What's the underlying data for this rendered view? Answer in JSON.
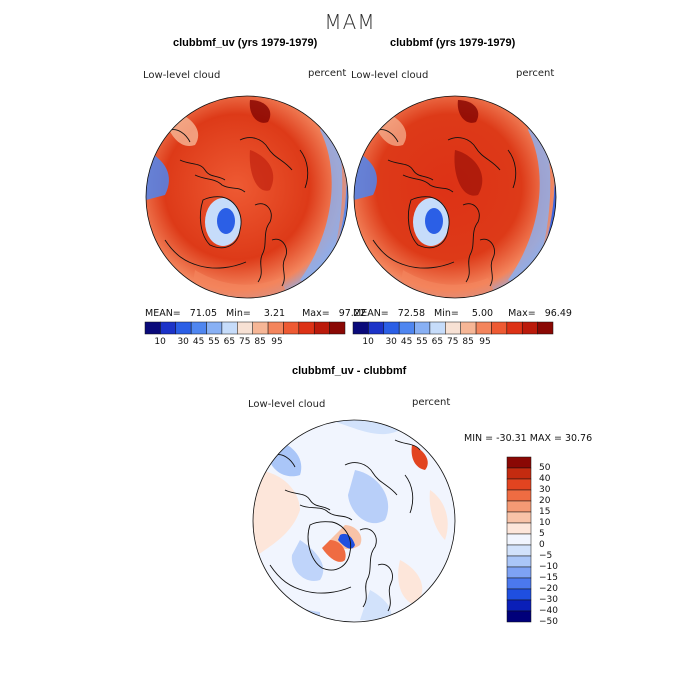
{
  "title": "MAM",
  "colors": {
    "land": "#111111",
    "seq_scale": [
      "#0a0a7a",
      "#1c33c8",
      "#2b5fe6",
      "#4f86f0",
      "#88b0f4",
      "#c6dcfa",
      "#f7e1d4",
      "#f6b696",
      "#f3855d",
      "#ee5a33",
      "#dd3216",
      "#bb1a0b",
      "#8a0804"
    ],
    "div_scale": [
      "#00007a",
      "#0a1fb8",
      "#1f4fe0",
      "#4b78ee",
      "#7ea2f4",
      "#aac6f8",
      "#d2e2fb",
      "#f1f5fe",
      "#fde6da",
      "#f8c3a8",
      "#f59a74",
      "#ef6c42",
      "#e24420",
      "#c42b10",
      "#8a0804"
    ]
  },
  "panels": [
    {
      "id": "left",
      "title": "clubbmf_uv (yrs 1979-1979)",
      "var_label": "Low-level cloud",
      "units": "percent",
      "stats": {
        "mean_label": "MEAN=",
        "mean": "71.05",
        "min_label": "Min=",
        "min": "3.21",
        "max_label": "Max=",
        "max": "97.22"
      },
      "colorbar_ticks": [
        "10",
        "30",
        "45",
        "55",
        "65",
        "75",
        "85",
        "95"
      ]
    },
    {
      "id": "right",
      "title": "clubbmf (yrs 1979-1979)",
      "var_label": "Low-level cloud",
      "units": "percent",
      "stats": {
        "mean_label": "MEAN=",
        "mean": "72.58",
        "min_label": "Min=",
        "min": "5.00",
        "max_label": "Max=",
        "max": "96.49"
      },
      "colorbar_ticks": [
        "10",
        "30",
        "45",
        "55",
        "65",
        "75",
        "85",
        "95"
      ]
    },
    {
      "id": "diff",
      "title": "clubbmf_uv - clubbmf",
      "var_label": "Low-level cloud",
      "units": "percent",
      "stats_text": "MIN = -30.31 MAX =  30.76",
      "colorbar_ticks": [
        "50",
        "40",
        "30",
        "20",
        "15",
        "10",
        "5",
        "0",
        "−5",
        "−10",
        "−15",
        "−20",
        "−30",
        "−40",
        "−50"
      ]
    }
  ]
}
